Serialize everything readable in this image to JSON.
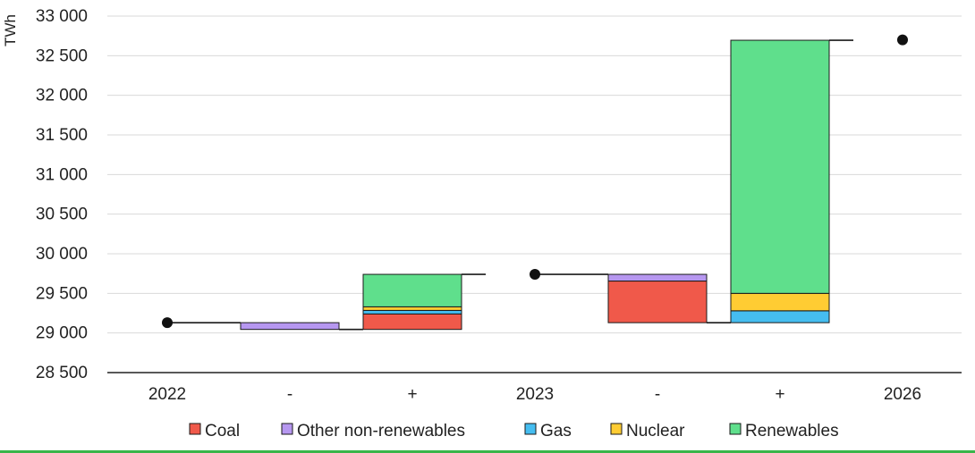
{
  "chart_data": {
    "type": "bar",
    "subtype": "waterfall",
    "ylabel": "TWh",
    "xlabel": "",
    "ylim": [
      28500,
      33000
    ],
    "yticks": [
      28500,
      29000,
      29500,
      30000,
      30500,
      31000,
      31500,
      32000,
      32500,
      33000
    ],
    "ytick_labels": [
      "28 500",
      "29 000",
      "29 500",
      "30 000",
      "30 500",
      "31 000",
      "31 500",
      "32 000",
      "32 500",
      "33 000"
    ],
    "categories": [
      "2022",
      "-",
      "+",
      "2023",
      "-",
      "+",
      "2026"
    ],
    "totals": [
      {
        "category": "2022",
        "value": 29130
      },
      {
        "category": "2023",
        "value": 29740
      },
      {
        "category": "2026",
        "value": 32700
      }
    ],
    "series": [
      {
        "name": "Coal",
        "color": "#f0594a",
        "values": [
          null,
          0,
          195,
          null,
          -525,
          0,
          null
        ]
      },
      {
        "name": "Other non-renewables",
        "color": "#b697f0",
        "values": [
          null,
          -85,
          0,
          null,
          -85,
          0,
          null
        ]
      },
      {
        "name": "Gas",
        "color": "#45bdf0",
        "values": [
          null,
          0,
          45,
          null,
          0,
          150,
          null
        ]
      },
      {
        "name": "Nuclear",
        "color": "#ffcc33",
        "values": [
          null,
          0,
          45,
          null,
          0,
          220,
          null
        ]
      },
      {
        "name": "Renewables",
        "color": "#5fdf8c",
        "values": [
          null,
          0,
          410,
          null,
          0,
          3195,
          null
        ]
      }
    ],
    "legend_position": "bottom",
    "grid": true
  }
}
